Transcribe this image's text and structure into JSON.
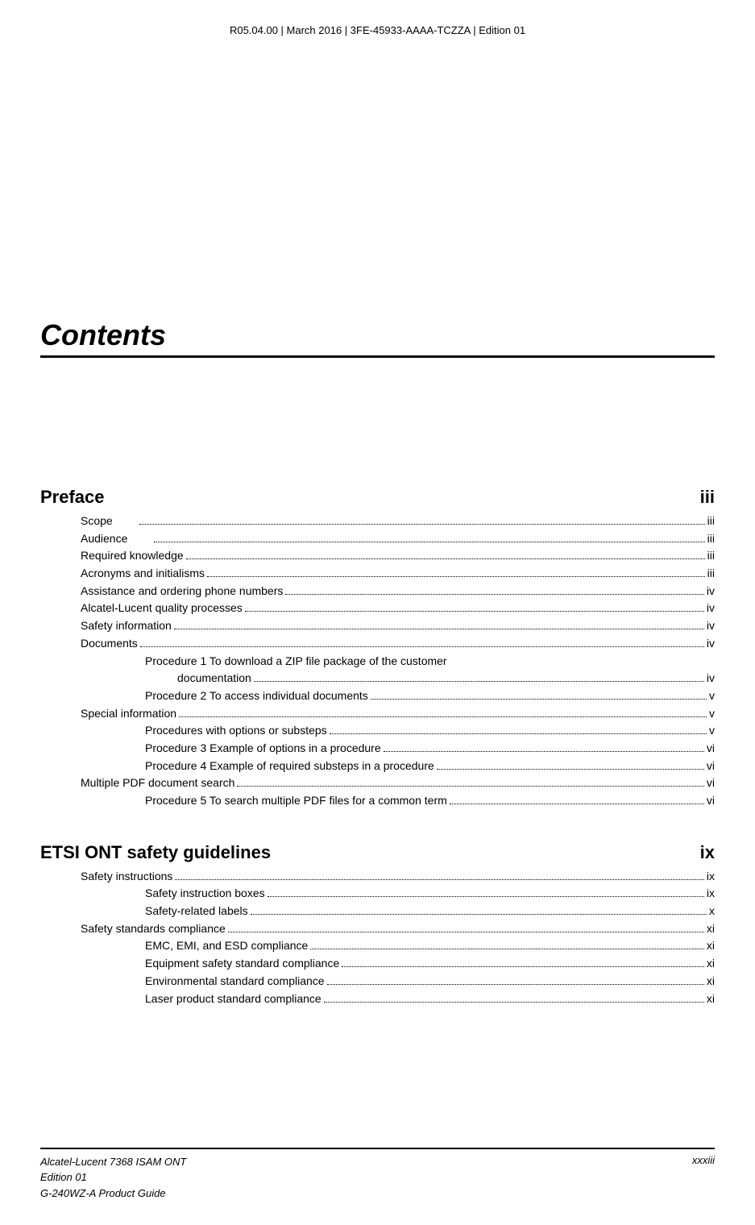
{
  "header": "R05.04.00 | March 2016 | 3FE-45933-AAAA-TCZZA | Edition 01",
  "title": "Contents",
  "sections": [
    {
      "heading": "Preface",
      "page": "iii",
      "entries": [
        {
          "level": 1,
          "label": "Scope",
          "page": "iii",
          "gap": true
        },
        {
          "level": 1,
          "label": "Audience",
          "page": "iii",
          "gap": true
        },
        {
          "level": 1,
          "label": "Required knowledge",
          "page": "iii"
        },
        {
          "level": 1,
          "label": "Acronyms and initialisms",
          "page": "iii"
        },
        {
          "level": 1,
          "label": "Assistance and ordering phone numbers",
          "page": "iv"
        },
        {
          "level": 1,
          "label": "Alcatel-Lucent quality processes",
          "page": "iv"
        },
        {
          "level": 1,
          "label": "Safety information",
          "page": "iv"
        },
        {
          "level": 1,
          "label": "Documents",
          "page": "iv"
        },
        {
          "level": 2,
          "label": "Procedure 1  To download a ZIP file package of the customer",
          "nowrap_page": true
        },
        {
          "level": "2cont",
          "label": "documentation",
          "page": "iv"
        },
        {
          "level": 2,
          "label": "Procedure 2  To access individual documents",
          "page": "v"
        },
        {
          "level": 1,
          "label": "Special information",
          "page": "v"
        },
        {
          "level": 2,
          "label": "Procedures with options or substeps",
          "page": "v"
        },
        {
          "level": 2,
          "label": "Procedure 3  Example of options in a procedure",
          "page": "vi"
        },
        {
          "level": 2,
          "label": "Procedure 4  Example of required substeps in a procedure",
          "page": "vi"
        },
        {
          "level": 1,
          "label": "Multiple PDF document search",
          "page": "vi"
        },
        {
          "level": 2,
          "label": "Procedure 5  To search multiple PDF files for a common term",
          "page": "vi"
        }
      ]
    },
    {
      "heading": "ETSI ONT safety guidelines",
      "page": "ix",
      "entries": [
        {
          "level": 1,
          "label": "Safety instructions",
          "page": "ix"
        },
        {
          "level": 2,
          "label": "Safety instruction boxes",
          "page": "ix"
        },
        {
          "level": 2,
          "label": "Safety-related labels",
          "page": "x"
        },
        {
          "level": 1,
          "label": "Safety standards compliance",
          "page": "xi"
        },
        {
          "level": 2,
          "label": "EMC, EMI, and ESD compliance",
          "page": "xi"
        },
        {
          "level": 2,
          "label": "Equipment safety standard compliance",
          "page": "xi"
        },
        {
          "level": 2,
          "label": "Environmental standard compliance",
          "page": "xi"
        },
        {
          "level": 2,
          "label": "Laser product standard compliance",
          "page": "xi"
        }
      ]
    }
  ],
  "footer": {
    "left_line1": "Alcatel-Lucent 7368 ISAM ONT",
    "left_line2": "Edition 01",
    "left_line3": "G-240WZ-A Product Guide",
    "right": "xxxiii"
  },
  "style": {
    "background_color": "#ffffff",
    "text_color": "#000000",
    "title_fontsize": 36,
    "section_head_fontsize": 22,
    "body_fontsize": 14,
    "header_fontsize": 13,
    "footer_fontsize": 13,
    "rule_color": "#000000"
  }
}
